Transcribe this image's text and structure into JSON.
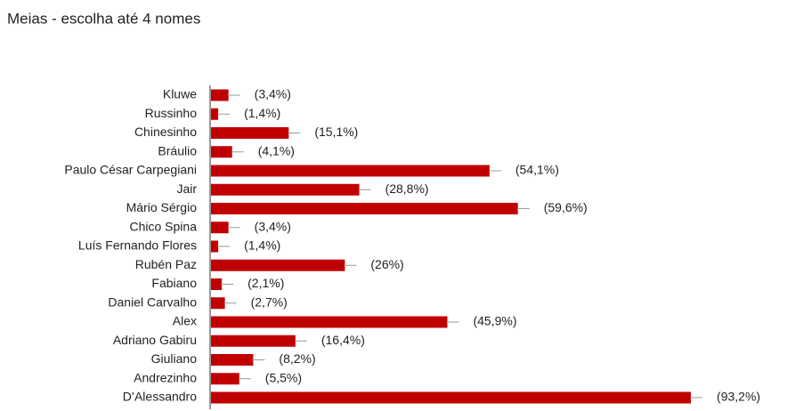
{
  "chart_data": {
    "type": "bar",
    "orientation": "horizontal",
    "title": "Meias - escolha até 4 nomes",
    "categories": [
      "Kluwe",
      "Russinho",
      "Chinesinho",
      "Bráulio",
      "Paulo César Carpegiani",
      "Jair",
      "Mário Sérgio",
      "Chico Spina",
      "Luís Fernando Flores",
      "Rubén Paz",
      "Fabiano",
      "Daniel Carvalho",
      "Alex",
      "Adriano Gabiru",
      "Giuliano",
      "Andrezinho",
      "D’Alessandro"
    ],
    "values": [
      3.4,
      1.4,
      15.1,
      4.1,
      54.1,
      28.8,
      59.6,
      3.4,
      1.4,
      26,
      2.1,
      2.7,
      45.9,
      16.4,
      8.2,
      5.5,
      93.2
    ],
    "value_labels": [
      "(3,4%)",
      "(1,4%)",
      "(15,1%)",
      "(4,1%)",
      "(54,1%)",
      "(28,8%)",
      "(59,6%)",
      "(3,4%)",
      "(1,4%)",
      "(26%)",
      "(2,1%)",
      "(2,7%)",
      "(45,9%)",
      "(16,4%)",
      "(8,2%)",
      "(5,5%)",
      "(93,2%)"
    ],
    "color": "#c00000",
    "xlim": [
      0,
      102.7
    ]
  }
}
